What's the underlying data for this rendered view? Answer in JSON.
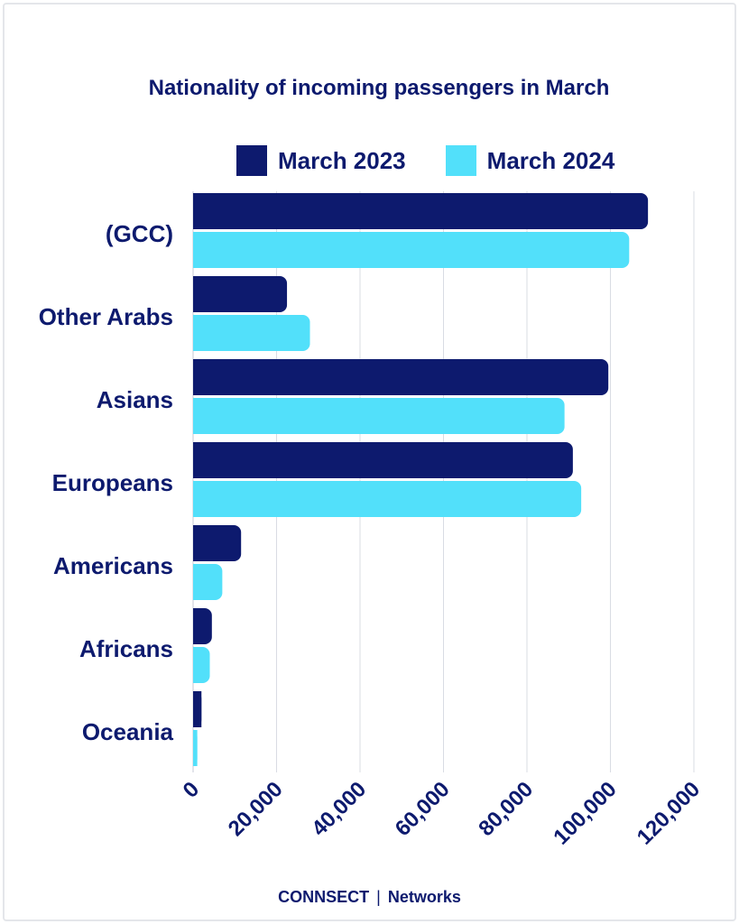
{
  "chart_data": {
    "type": "bar",
    "orientation": "horizontal",
    "title": "Nationality of incoming passengers in March",
    "categories": [
      "(GCC)",
      "Other Arabs",
      "Asians",
      "Europeans",
      "Americans",
      "Africans",
      "Oceania"
    ],
    "series": [
      {
        "name": "March 2023",
        "color": "#0d1a6e",
        "values": [
          109000,
          22500,
          99500,
          91000,
          11500,
          4500,
          2000
        ]
      },
      {
        "name": "March 2024",
        "color": "#52e0fa",
        "values": [
          104500,
          28000,
          89000,
          93000,
          7000,
          4000,
          1000
        ]
      }
    ],
    "xlim": [
      0,
      120000
    ],
    "xticks": [
      0,
      20000,
      40000,
      60000,
      80000,
      100000,
      120000
    ],
    "xtick_labels": [
      "0",
      "20,000",
      "40,000",
      "60,000",
      "80,000",
      "100,000",
      "120,000"
    ],
    "xlabel": "",
    "ylabel": "",
    "grid": true,
    "legend_position": "top"
  },
  "watermark": "CONNSECT Networks",
  "footer": {
    "brand": "CONNSECT",
    "separator": "|",
    "suffix": "Networks"
  }
}
